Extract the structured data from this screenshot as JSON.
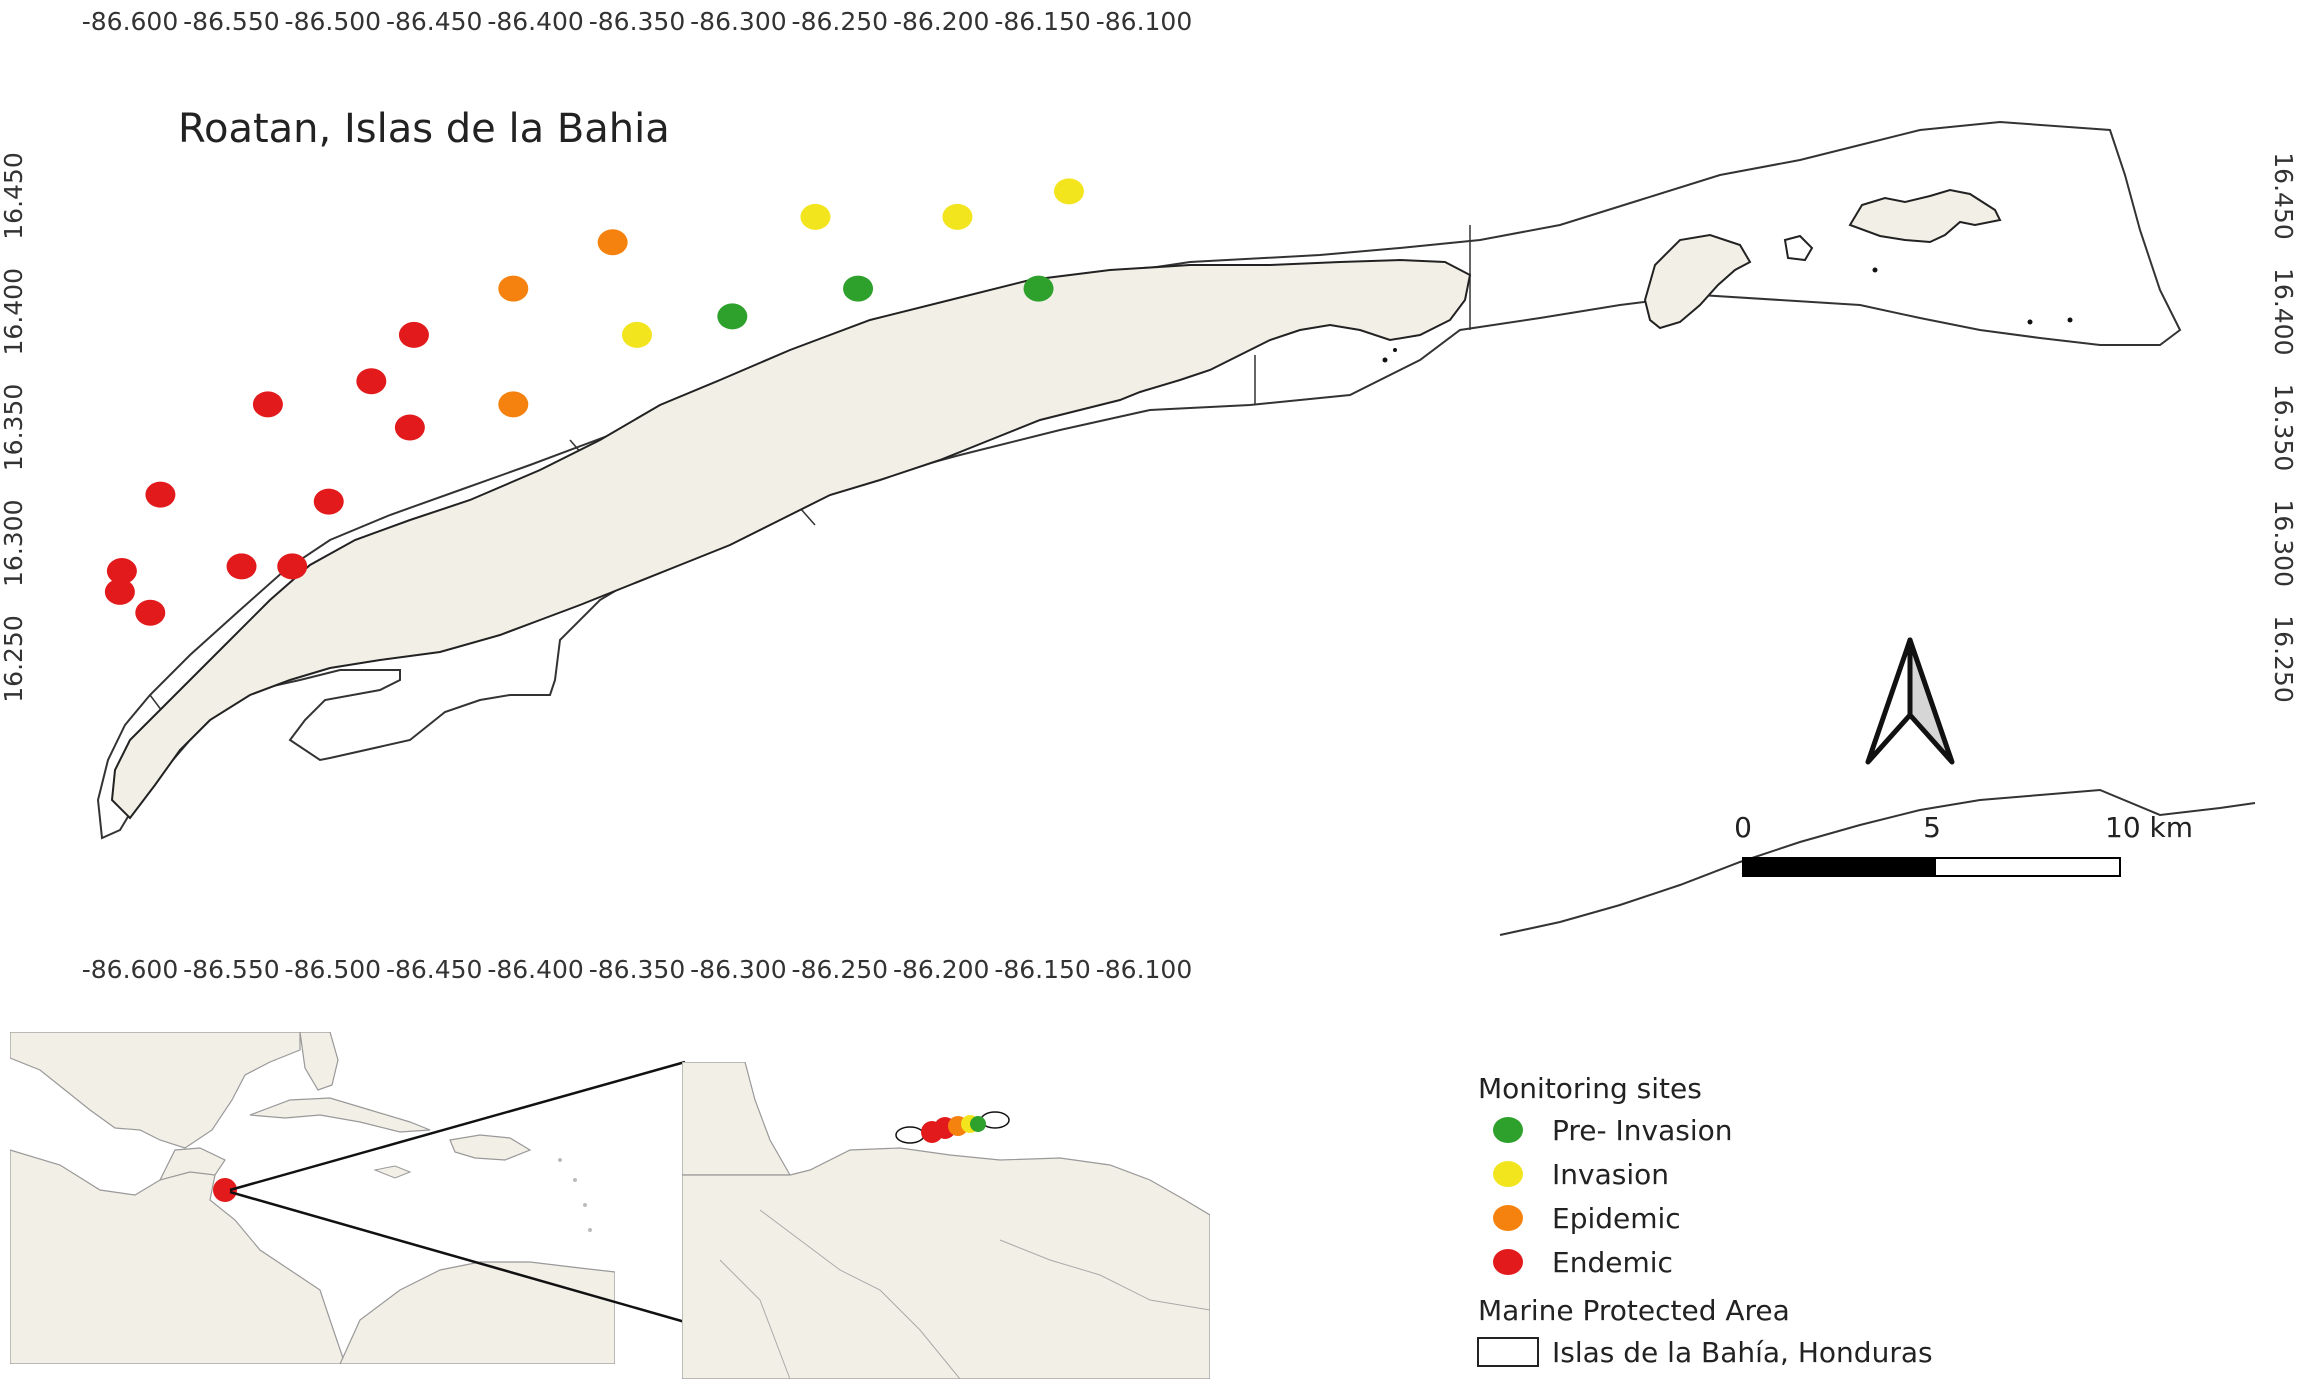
{
  "title": "Roatan, Islas de la Bahia",
  "colors": {
    "pre_invasion": "#2ea02c",
    "invasion": "#f2e51e",
    "epidemic": "#f5820f",
    "endemic": "#e31a1c",
    "land": "#f1efe6",
    "outline": "#222222"
  },
  "axes": {
    "x_ticks": [
      "-86.600",
      "-86.550",
      "-86.500",
      "-86.450",
      "-86.400",
      "-86.350",
      "-86.300",
      "-86.250",
      "-86.200",
      "-86.150",
      "-86.100"
    ],
    "y_ticks": [
      "16.450",
      "16.400",
      "16.350",
      "16.300",
      "16.250"
    ]
  },
  "sites": [
    {
      "lon": -86.604,
      "lat": 16.288,
      "status": "endemic"
    },
    {
      "lon": -86.605,
      "lat": 16.279,
      "status": "endemic"
    },
    {
      "lon": -86.59,
      "lat": 16.27,
      "status": "endemic"
    },
    {
      "lon": -86.585,
      "lat": 16.321,
      "status": "endemic"
    },
    {
      "lon": -86.545,
      "lat": 16.29,
      "status": "endemic"
    },
    {
      "lon": -86.52,
      "lat": 16.29,
      "status": "endemic"
    },
    {
      "lon": -86.502,
      "lat": 16.318,
      "status": "endemic"
    },
    {
      "lon": -86.532,
      "lat": 16.36,
      "status": "endemic"
    },
    {
      "lon": -86.481,
      "lat": 16.37,
      "status": "endemic"
    },
    {
      "lon": -86.462,
      "lat": 16.35,
      "status": "endemic"
    },
    {
      "lon": -86.46,
      "lat": 16.39,
      "status": "endemic"
    },
    {
      "lon": -86.411,
      "lat": 16.41,
      "status": "epidemic"
    },
    {
      "lon": -86.411,
      "lat": 16.36,
      "status": "epidemic"
    },
    {
      "lon": -86.362,
      "lat": 16.43,
      "status": "epidemic"
    },
    {
      "lon": -86.35,
      "lat": 16.39,
      "status": "invasion"
    },
    {
      "lon": -86.262,
      "lat": 16.441,
      "status": "invasion"
    },
    {
      "lon": -86.192,
      "lat": 16.441,
      "status": "invasion"
    },
    {
      "lon": -86.137,
      "lat": 16.452,
      "status": "invasion"
    },
    {
      "lon": -86.303,
      "lat": 16.398,
      "status": "pre_invasion"
    },
    {
      "lon": -86.241,
      "lat": 16.41,
      "status": "pre_invasion"
    },
    {
      "lon": -86.152,
      "lat": 16.41,
      "status": "pre_invasion"
    }
  ],
  "scale_bar": {
    "labels": [
      "0",
      "5",
      "10 km"
    ]
  },
  "legend": {
    "monitoring_heading": "Monitoring sites",
    "items": [
      {
        "key": "pre_invasion",
        "label": "Pre- Invasion"
      },
      {
        "key": "invasion",
        "label": "Invasion"
      },
      {
        "key": "epidemic",
        "label": "Epidemic"
      },
      {
        "key": "endemic",
        "label": "Endemic"
      }
    ],
    "mpa_heading": "Marine Protected Area",
    "mpa_label": "Islas de la Bahía, Honduras"
  }
}
